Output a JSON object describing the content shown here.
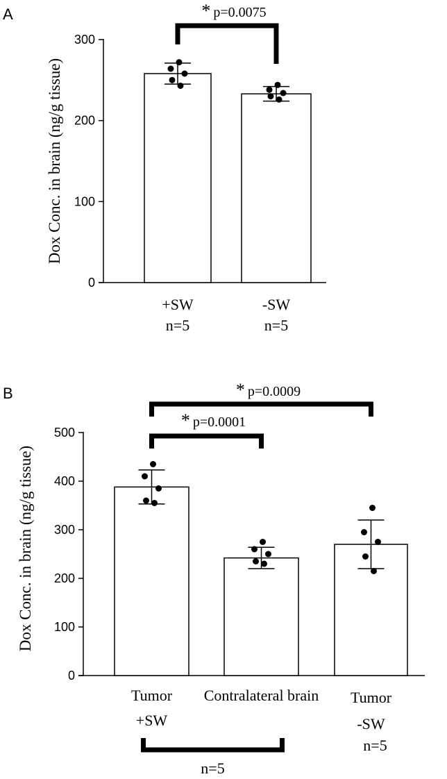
{
  "chart_data": [
    {
      "type": "bar",
      "panel_label": "A",
      "ylabel": "Dox Conc. in brain (ng/g tissue)",
      "ylim": [
        0,
        300
      ],
      "yticks": [
        0,
        100,
        200,
        300
      ],
      "categories": [
        "+SW",
        "-SW"
      ],
      "n_labels": [
        "n=5",
        "n=5"
      ],
      "values": [
        258,
        233
      ],
      "error": [
        13,
        9
      ],
      "points": [
        [
          272,
          264,
          258,
          250,
          243
        ],
        [
          244,
          238,
          234,
          230,
          226
        ]
      ],
      "comparisons": [
        {
          "from": 0,
          "to": 1,
          "label": "p=0.0075",
          "star": "*"
        }
      ]
    },
    {
      "type": "bar",
      "panel_label": "B",
      "ylabel": "Dox Conc. in brain (ng/g tissue)",
      "ylim": [
        0,
        500
      ],
      "yticks": [
        0,
        100,
        200,
        300,
        400,
        500
      ],
      "categories": [
        "Tumor +SW",
        "Contralateral brain",
        "Tumor -SW"
      ],
      "category_lines": [
        [
          "Tumor",
          "+SW"
        ],
        [
          "Contralateral brain"
        ],
        [
          "Tumor",
          "-SW"
        ]
      ],
      "values": [
        388,
        242,
        270
      ],
      "error": [
        35,
        22,
        50
      ],
      "points": [
        [
          435,
          410,
          385,
          360,
          355
        ],
        [
          275,
          260,
          250,
          235,
          230
        ],
        [
          345,
          295,
          275,
          245,
          215
        ]
      ],
      "comparisons": [
        {
          "from": 0,
          "to": 1,
          "label": "p=0.0001",
          "star": "*"
        },
        {
          "from": 0,
          "to": 2,
          "label": "p=0.0009",
          "star": "*"
        }
      ],
      "group_n": {
        "label": "n=5",
        "from": 0,
        "to": 1
      },
      "extra_n": {
        "label": "n=5",
        "bar": 2
      }
    }
  ]
}
